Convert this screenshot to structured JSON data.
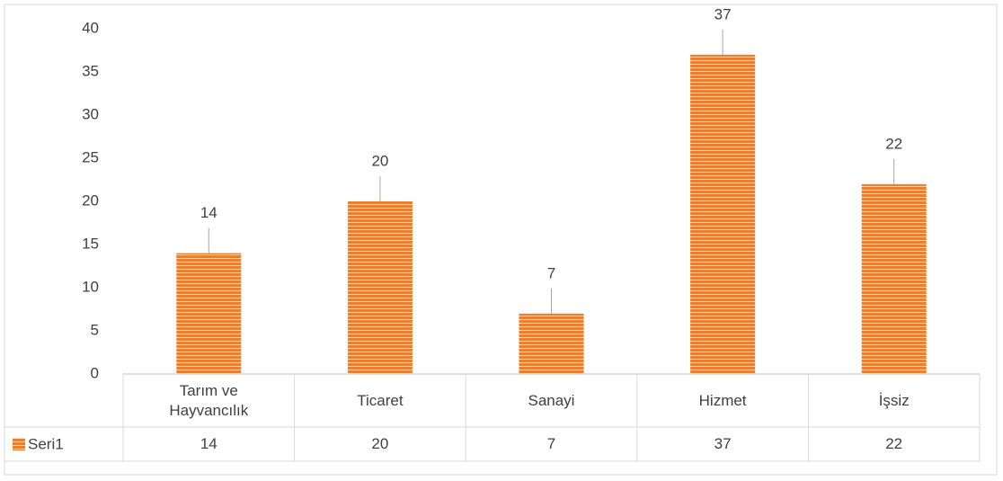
{
  "chart_data": {
    "type": "bar",
    "categories": [
      "Tarım ve Hayvancılık",
      "Ticaret",
      "Sanayi",
      "Hizmet",
      "İşsiz"
    ],
    "series": [
      {
        "name": "Seri1",
        "color": "#ed7d31",
        "values": [
          14,
          20,
          7,
          37,
          22
        ]
      }
    ],
    "ylim": [
      0,
      40
    ],
    "yticks": [
      0,
      5,
      10,
      15,
      20,
      25,
      30,
      35,
      40
    ],
    "grid": false,
    "data_table": true
  }
}
